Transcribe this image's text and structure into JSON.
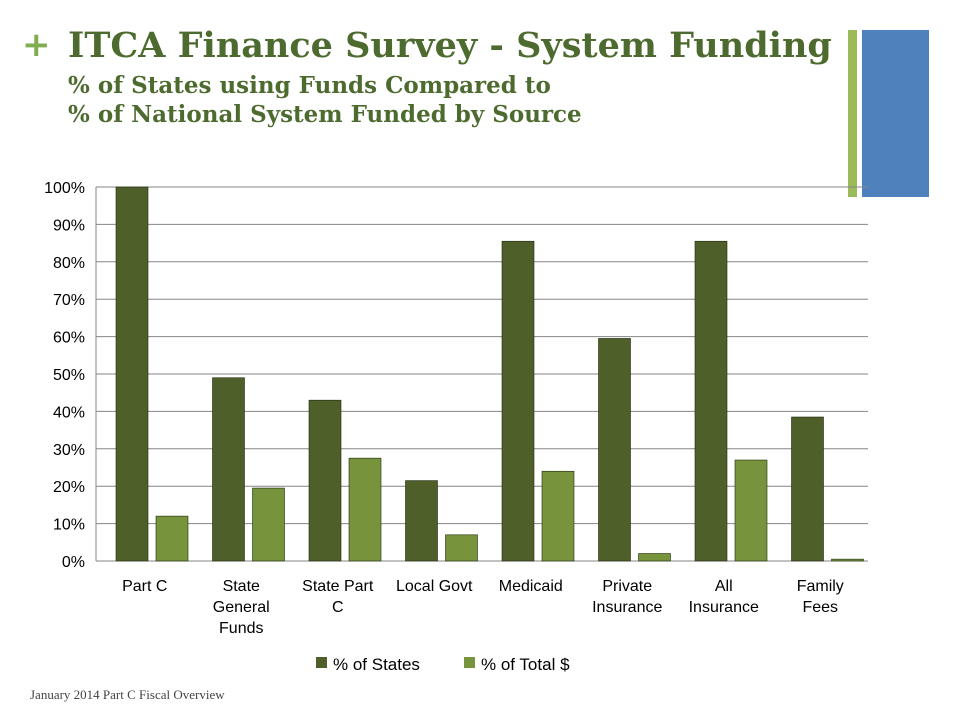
{
  "header": {
    "plus": "+",
    "title": "ITCA Finance Survey - System Funding",
    "subtitle_line1": "% of States using Funds Compared to",
    "subtitle_line2": "% of National System Funded by Source"
  },
  "footer": {
    "text": "January 2014 Part C Fiscal Overview"
  },
  "colors": {
    "title": "#4e6b2f",
    "plus": "#7fae4f",
    "accent_green": "#9bbb59",
    "accent_blue": "#4f81bd",
    "series_dark": "#4e5f2a",
    "series_light": "#77933c",
    "grid": "#868686"
  },
  "chart_data": {
    "type": "bar",
    "categories": [
      [
        "Part C"
      ],
      [
        "State",
        "General",
        "Funds"
      ],
      [
        "State Part",
        "C"
      ],
      [
        "Local Govt"
      ],
      [
        "Medicaid"
      ],
      [
        "Private",
        "Insurance"
      ],
      [
        "All",
        "Insurance"
      ],
      [
        "Family",
        "Fees"
      ]
    ],
    "series": [
      {
        "name": "% of States",
        "values": [
          100,
          49,
          43,
          21.5,
          85.5,
          59.5,
          85.5,
          38.5
        ]
      },
      {
        "name": "% of Total $",
        "values": [
          12,
          19.5,
          27.5,
          7,
          24,
          2,
          27,
          0.5
        ]
      }
    ],
    "ylim": [
      0,
      100
    ],
    "yticks": [
      "0%",
      "10%",
      "20%",
      "30%",
      "40%",
      "50%",
      "60%",
      "70%",
      "80%",
      "90%",
      "100%"
    ],
    "grid": true,
    "legend": "bottom"
  }
}
